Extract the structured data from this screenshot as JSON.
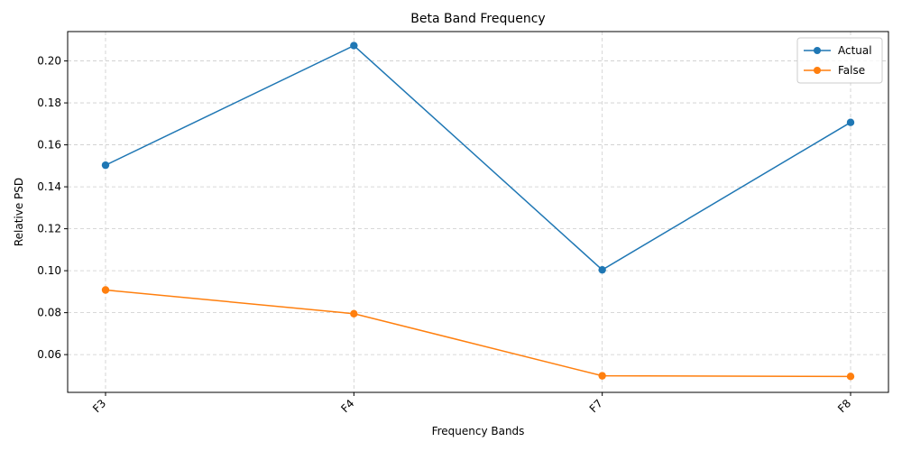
{
  "chart_data": {
    "type": "line",
    "title": "Beta Band Frequency",
    "xlabel": "Frequency Bands",
    "ylabel": "Relative PSD",
    "categories": [
      "F3",
      "F4",
      "F7",
      "F8"
    ],
    "series": [
      {
        "name": "Actual",
        "color": "#1f77b4",
        "values": [
          0.1503,
          0.2073,
          0.1004,
          0.1707
        ]
      },
      {
        "name": "False",
        "color": "#ff7f0e",
        "values": [
          0.0908,
          0.0795,
          0.0499,
          0.0496
        ]
      }
    ],
    "yticks": [
      "0.06",
      "0.08",
      "0.10",
      "0.12",
      "0.14",
      "0.16",
      "0.18",
      "0.20"
    ],
    "ylim": [
      0.042,
      0.214
    ],
    "grid": true,
    "legend_position": "top-right",
    "xtick_rotation": "45 degrees"
  }
}
